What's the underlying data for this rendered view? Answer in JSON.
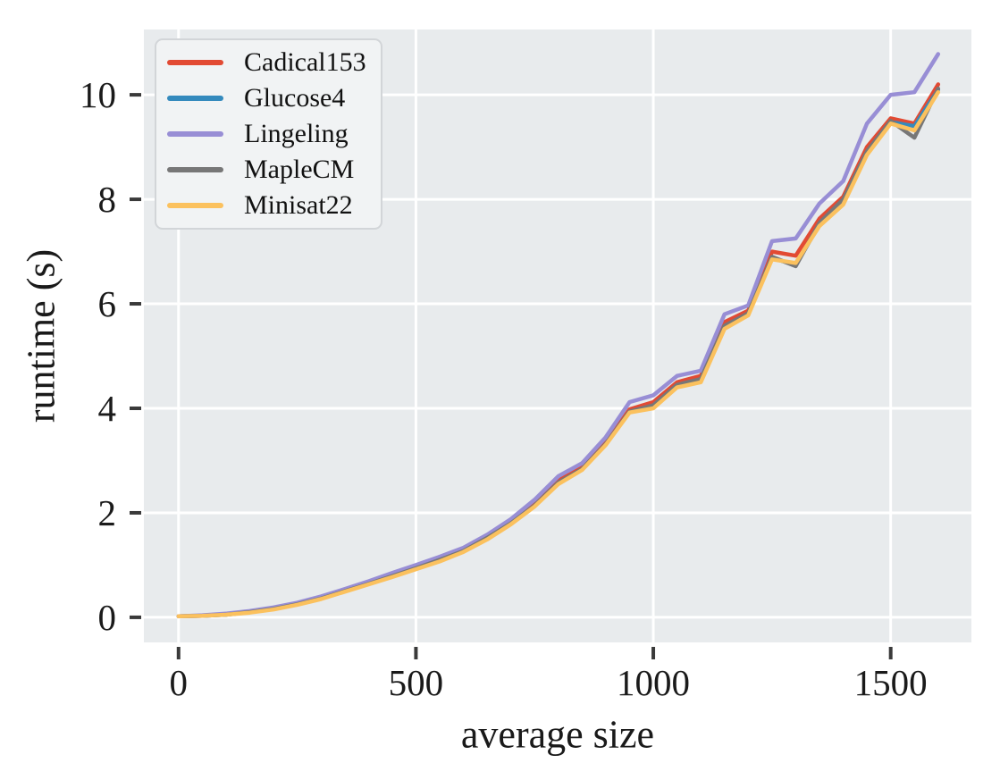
{
  "chart_data": {
    "type": "line",
    "title": "",
    "xlabel": "average size",
    "ylabel": "runtime (s)",
    "x_ticks": [
      0,
      500,
      1000,
      1500
    ],
    "y_ticks": [
      0,
      2,
      4,
      6,
      8,
      10
    ],
    "x_domain": [
      -73,
      1670
    ],
    "y_domain": [
      -0.48,
      11.25
    ],
    "grid": true,
    "plot_background": "#e8ebed",
    "grid_color": "#ffffff",
    "tick_color": "#3a3a3a",
    "legend_position": "upper left",
    "x": [
      0,
      50,
      100,
      150,
      200,
      250,
      300,
      350,
      400,
      450,
      500,
      550,
      600,
      650,
      700,
      750,
      800,
      850,
      900,
      950,
      1000,
      1050,
      1100,
      1150,
      1200,
      1250,
      1300,
      1350,
      1400,
      1450,
      1500,
      1550,
      1600
    ],
    "series": [
      {
        "name": "Cadical153",
        "color": "#E24A33",
        "values": [
          0.02,
          0.03,
          0.06,
          0.11,
          0.17,
          0.27,
          0.38,
          0.51,
          0.66,
          0.81,
          0.95,
          1.11,
          1.28,
          1.53,
          1.82,
          2.17,
          2.62,
          2.87,
          3.35,
          3.98,
          4.12,
          4.5,
          4.62,
          5.65,
          5.87,
          7.0,
          6.92,
          7.63,
          8.05,
          9.0,
          9.55,
          9.45,
          10.2
        ]
      },
      {
        "name": "Glucose4",
        "color": "#348ABD",
        "values": [
          0.02,
          0.03,
          0.05,
          0.1,
          0.16,
          0.25,
          0.36,
          0.5,
          0.64,
          0.79,
          0.93,
          1.09,
          1.26,
          1.51,
          1.79,
          2.13,
          2.57,
          2.83,
          3.31,
          3.93,
          4.03,
          4.42,
          4.54,
          5.56,
          5.8,
          6.88,
          6.74,
          7.52,
          7.95,
          8.9,
          9.48,
          9.4,
          10.1
        ]
      },
      {
        "name": "Lingeling",
        "color": "#988ED5",
        "values": [
          0.02,
          0.04,
          0.07,
          0.12,
          0.19,
          0.28,
          0.4,
          0.54,
          0.69,
          0.85,
          1.0,
          1.16,
          1.33,
          1.58,
          1.88,
          2.25,
          2.7,
          2.95,
          3.45,
          4.12,
          4.25,
          4.62,
          4.72,
          5.8,
          5.97,
          7.2,
          7.25,
          7.92,
          8.35,
          9.45,
          10.0,
          10.05,
          10.78
        ]
      },
      {
        "name": "MapleCM",
        "color": "#777777",
        "values": [
          0.02,
          0.03,
          0.05,
          0.1,
          0.16,
          0.25,
          0.36,
          0.5,
          0.64,
          0.79,
          0.94,
          1.1,
          1.27,
          1.52,
          1.8,
          2.14,
          2.58,
          2.84,
          3.32,
          3.94,
          4.06,
          4.45,
          4.56,
          5.58,
          5.82,
          6.9,
          6.72,
          7.55,
          8.0,
          8.92,
          9.5,
          9.18,
          10.12
        ]
      },
      {
        "name": "Minisat22",
        "color": "#FBC15E",
        "values": [
          0.02,
          0.03,
          0.05,
          0.09,
          0.15,
          0.24,
          0.35,
          0.49,
          0.63,
          0.77,
          0.92,
          1.07,
          1.25,
          1.49,
          1.78,
          2.12,
          2.55,
          2.82,
          3.3,
          3.92,
          4.0,
          4.4,
          4.5,
          5.52,
          5.78,
          6.85,
          6.78,
          7.49,
          7.9,
          8.85,
          9.45,
          9.32,
          10.05
        ]
      }
    ]
  }
}
